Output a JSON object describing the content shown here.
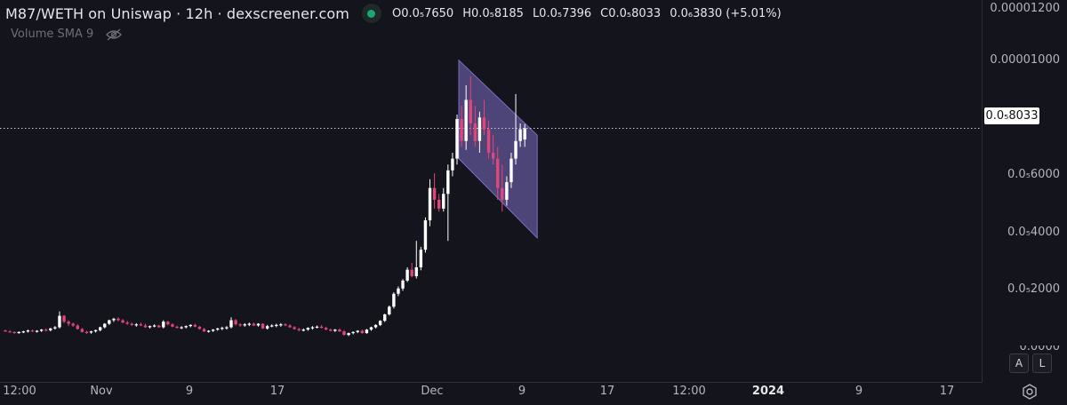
{
  "header": {
    "title": "M87/WETH on Uniswap · 12h · dexscreener.com",
    "open": "O0.0₅7650",
    "high": "H0.0₅8185",
    "low": "L0.0₅7396",
    "close": "C0.0₅8033",
    "change": "0.0₆3830 (+5.01%)",
    "indicator": "Volume SMA 9"
  },
  "axis": {
    "y_labels": [
      "0.00001200",
      "0.00001000",
      "0.0₅8033",
      "0.0₅6000",
      "0.0₅4000",
      "0.0₅2000",
      "0.0000"
    ],
    "current_price": "0.0₅8033",
    "x_labels": [
      "12:00",
      "Nov",
      "9",
      "17",
      "Dec",
      "9",
      "17",
      "12:00",
      "2024",
      "9",
      "17"
    ]
  },
  "buttons": {
    "auto": "A",
    "log": "L"
  },
  "colors": {
    "background": "#14141c",
    "up": "#ffffff",
    "down": "#e0467a",
    "channel": "#7b6bc4"
  },
  "chart_data": {
    "type": "candlestick",
    "pair": "M87/WETH",
    "interval": "12h",
    "y_unit": "WETH",
    "ylim": [
      -6e-07,
      1.24e-05
    ],
    "current_price": 8.033e-06,
    "channel": {
      "upper": [
        [
          1.035e-05,
          7.8e-06
        ]
      ],
      "lower": [
        [
          7e-06,
          4.3e-06
        ]
      ]
    },
    "candles": [
      [
        1.15e-06,
        1.18e-06,
        1.1e-06,
        1.12e-06
      ],
      [
        1.12e-06,
        1.16e-06,
        1.08e-06,
        1.1e-06
      ],
      [
        1.1e-06,
        1.12e-06,
        1.04e-06,
        1.06e-06
      ],
      [
        1.06e-06,
        1.12e-06,
        1.04e-06,
        1.1e-06
      ],
      [
        1.1e-06,
        1.14e-06,
        1.06e-06,
        1.12e-06
      ],
      [
        1.12e-06,
        1.18e-06,
        1.08e-06,
        1.15e-06
      ],
      [
        1.15e-06,
        1.18e-06,
        1.1e-06,
        1.12e-06
      ],
      [
        1.12e-06,
        1.16e-06,
        1.08e-06,
        1.14e-06
      ],
      [
        1.14e-06,
        1.2e-06,
        1.1e-06,
        1.18e-06
      ],
      [
        1.18e-06,
        1.22e-06,
        1.12e-06,
        1.16e-06
      ],
      [
        1.16e-06,
        1.24e-06,
        1.12e-06,
        1.22e-06
      ],
      [
        1.22e-06,
        1.3e-06,
        1.18e-06,
        1.26e-06
      ],
      [
        1.26e-06,
        1.8e-06,
        1.22e-06,
        1.65e-06
      ],
      [
        1.65e-06,
        1.68e-06,
        1.4e-06,
        1.45e-06
      ],
      [
        1.45e-06,
        1.5e-06,
        1.3e-06,
        1.38e-06
      ],
      [
        1.38e-06,
        1.42e-06,
        1.28e-06,
        1.32e-06
      ],
      [
        1.32e-06,
        1.36e-06,
        1.18e-06,
        1.2e-06
      ],
      [
        1.2e-06,
        1.24e-06,
        1.08e-06,
        1.1e-06
      ],
      [
        1.1e-06,
        1.14e-06,
        1.04e-06,
        1.08e-06
      ],
      [
        1.08e-06,
        1.14e-06,
        1.04e-06,
        1.12e-06
      ],
      [
        1.12e-06,
        1.18e-06,
        1.08e-06,
        1.16e-06
      ],
      [
        1.16e-06,
        1.28e-06,
        1.12e-06,
        1.26e-06
      ],
      [
        1.26e-06,
        1.4e-06,
        1.22e-06,
        1.38e-06
      ],
      [
        1.38e-06,
        1.52e-06,
        1.34e-06,
        1.5e-06
      ],
      [
        1.5e-06,
        1.58e-06,
        1.44e-06,
        1.55e-06
      ],
      [
        1.55e-06,
        1.6e-06,
        1.46e-06,
        1.5e-06
      ],
      [
        1.5e-06,
        1.54e-06,
        1.4e-06,
        1.42e-06
      ],
      [
        1.42e-06,
        1.48e-06,
        1.34e-06,
        1.38e-06
      ],
      [
        1.38e-06,
        1.42e-06,
        1.3e-06,
        1.34e-06
      ],
      [
        1.34e-06,
        1.4e-06,
        1.28e-06,
        1.36e-06
      ],
      [
        1.36e-06,
        1.42e-06,
        1.3e-06,
        1.32e-06
      ],
      [
        1.32e-06,
        1.38e-06,
        1.24e-06,
        1.26e-06
      ],
      [
        1.26e-06,
        1.32e-06,
        1.22e-06,
        1.3e-06
      ],
      [
        1.3e-06,
        1.36e-06,
        1.26e-06,
        1.32e-06
      ],
      [
        1.32e-06,
        1.34e-06,
        1.24e-06,
        1.26e-06
      ],
      [
        1.26e-06,
        1.5e-06,
        1.22e-06,
        1.45e-06
      ],
      [
        1.45e-06,
        1.48e-06,
        1.32e-06,
        1.36e-06
      ],
      [
        1.36e-06,
        1.4e-06,
        1.26e-06,
        1.28e-06
      ],
      [
        1.28e-06,
        1.32e-06,
        1.22e-06,
        1.24e-06
      ],
      [
        1.24e-06,
        1.3e-06,
        1.2e-06,
        1.26e-06
      ],
      [
        1.26e-06,
        1.32e-06,
        1.22e-06,
        1.3e-06
      ],
      [
        1.3e-06,
        1.36e-06,
        1.26e-06,
        1.34e-06
      ],
      [
        1.34e-06,
        1.38e-06,
        1.26e-06,
        1.28e-06
      ],
      [
        1.28e-06,
        1.3e-06,
        1.18e-06,
        1.2e-06
      ],
      [
        1.2e-06,
        1.24e-06,
        1.1e-06,
        1.12e-06
      ],
      [
        1.12e-06,
        1.16e-06,
        1.08e-06,
        1.14e-06
      ],
      [
        1.14e-06,
        1.2e-06,
        1.1e-06,
        1.18e-06
      ],
      [
        1.18e-06,
        1.24e-06,
        1.14e-06,
        1.22e-06
      ],
      [
        1.22e-06,
        1.28e-06,
        1.16e-06,
        1.24e-06
      ],
      [
        1.24e-06,
        1.3e-06,
        1.18e-06,
        1.26e-06
      ],
      [
        1.26e-06,
        1.6e-06,
        1.22e-06,
        1.5e-06
      ],
      [
        1.5e-06,
        1.54e-06,
        1.32e-06,
        1.36e-06
      ],
      [
        1.36e-06,
        1.4e-06,
        1.28e-06,
        1.32e-06
      ],
      [
        1.32e-06,
        1.4e-06,
        1.28e-06,
        1.36e-06
      ],
      [
        1.36e-06,
        1.42e-06,
        1.3e-06,
        1.38e-06
      ],
      [
        1.38e-06,
        1.42e-06,
        1.3e-06,
        1.32e-06
      ],
      [
        1.32e-06,
        1.4e-06,
        1.28e-06,
        1.38e-06
      ],
      [
        1.38e-06,
        1.4e-06,
        1.2e-06,
        1.22e-06
      ],
      [
        1.22e-06,
        1.34e-06,
        1.18e-06,
        1.3e-06
      ],
      [
        1.3e-06,
        1.36e-06,
        1.26e-06,
        1.32e-06
      ],
      [
        1.32e-06,
        1.38e-06,
        1.26e-06,
        1.34e-06
      ],
      [
        1.34e-06,
        1.4e-06,
        1.28e-06,
        1.36e-06
      ],
      [
        1.36e-06,
        1.4e-06,
        1.3e-06,
        1.32e-06
      ],
      [
        1.32e-06,
        1.36e-06,
        1.24e-06,
        1.26e-06
      ],
      [
        1.26e-06,
        1.3e-06,
        1.18e-06,
        1.2e-06
      ],
      [
        1.2e-06,
        1.24e-06,
        1.12e-06,
        1.16e-06
      ],
      [
        1.16e-06,
        1.22e-06,
        1.12e-06,
        1.18e-06
      ],
      [
        1.18e-06,
        1.26e-06,
        1.14e-06,
        1.24e-06
      ],
      [
        1.24e-06,
        1.3e-06,
        1.18e-06,
        1.26e-06
      ],
      [
        1.26e-06,
        1.32e-06,
        1.22e-06,
        1.28e-06
      ],
      [
        1.28e-06,
        1.34e-06,
        1.22e-06,
        1.24e-06
      ],
      [
        1.24e-06,
        1.28e-06,
        1.16e-06,
        1.18e-06
      ],
      [
        1.18e-06,
        1.22e-06,
        1.12e-06,
        1.14e-06
      ],
      [
        1.14e-06,
        1.2e-06,
        1.1e-06,
        1.18e-06
      ],
      [
        1.18e-06,
        1.22e-06,
        1.1e-06,
        1.12e-06
      ],
      [
        1.12e-06,
        1.16e-06,
        9.8e-07,
        1e-06
      ],
      [
        1e-06,
        1.08e-06,
        9.6e-07,
        1.06e-06
      ],
      [
        1.06e-06,
        1.12e-06,
        1.02e-06,
        1.1e-06
      ],
      [
        1.1e-06,
        1.16e-06,
        1.06e-06,
        1.14e-06
      ],
      [
        1.14e-06,
        1.18e-06,
        1.04e-06,
        1.06e-06
      ],
      [
        1.06e-06,
        1.2e-06,
        1.04e-06,
        1.18e-06
      ],
      [
        1.18e-06,
        1.28e-06,
        1.14e-06,
        1.26e-06
      ],
      [
        1.26e-06,
        1.36e-06,
        1.22e-06,
        1.34e-06
      ],
      [
        1.34e-06,
        1.5e-06,
        1.3e-06,
        1.48e-06
      ],
      [
        1.48e-06,
        1.72e-06,
        1.44e-06,
        1.7e-06
      ],
      [
        1.7e-06,
        2e-06,
        1.66e-06,
        1.96e-06
      ],
      [
        1.96e-06,
        2.45e-06,
        1.9e-06,
        2.4e-06
      ],
      [
        2.4e-06,
        2.65e-06,
        2.32e-06,
        2.58e-06
      ],
      [
        2.58e-06,
        2.9e-06,
        2.5e-06,
        2.85e-06
      ],
      [
        2.85e-06,
        3.3e-06,
        2.8e-06,
        3.22e-06
      ],
      [
        3.22e-06,
        3.45e-06,
        2.96e-06,
        3e-06
      ],
      [
        3e-06,
        4.2e-06,
        2.92e-06,
        3.3e-06
      ],
      [
        3.3e-06,
        4e-06,
        3.2e-06,
        3.9e-06
      ],
      [
        3.9e-06,
        5e-06,
        3.8e-06,
        4.9e-06
      ],
      [
        4.9e-06,
        6.3e-06,
        4.7e-06,
        6e-06
      ],
      [
        6e-06,
        6.5e-06,
        5.3e-06,
        5.6e-06
      ],
      [
        5.6e-06,
        5.8e-06,
        5.2e-06,
        5.3e-06
      ],
      [
        5.3e-06,
        6e-06,
        5.2e-06,
        5.8e-06
      ],
      [
        5.8e-06,
        6.8e-06,
        4.2e-06,
        6.6e-06
      ],
      [
        6.6e-06,
        7.2e-06,
        6.4e-06,
        7e-06
      ],
      [
        7e-06,
        8.5e-06,
        6.8e-06,
        8.35e-06
      ],
      [
        8.35e-06,
        8.8e-06,
        7.4e-06,
        7.6e-06
      ],
      [
        7.6e-06,
        9.5e-06,
        7.3e-06,
        9e-06
      ],
      [
        9e-06,
        9.8e-06,
        7.8e-06,
        8.2e-06
      ],
      [
        8.2e-06,
        8.8e-06,
        7.4e-06,
        7.6e-06
      ],
      [
        7.6e-06,
        8.6e-06,
        7.2e-06,
        8.4e-06
      ],
      [
        8.4e-06,
        9e-06,
        7.8e-06,
        8e-06
      ],
      [
        8e-06,
        8.3e-06,
        7e-06,
        7.2e-06
      ],
      [
        7.2e-06,
        7.8e-06,
        6.8e-06,
        7e-06
      ],
      [
        7e-06,
        7.4e-06,
        5.6e-06,
        6e-06
      ],
      [
        6e-06,
        6.8e-06,
        5.2e-06,
        5.6e-06
      ],
      [
        5.6e-06,
        6.4e-06,
        5.4e-06,
        6.2e-06
      ],
      [
        6.2e-06,
        7.2e-06,
        6e-06,
        7e-06
      ],
      [
        7e-06,
        9.2e-06,
        6.8e-06,
        7.6e-06
      ],
      [
        7.6e-06,
        8.2e-06,
        7.4e-06,
        8e-06
      ],
      [
        7.65e-06,
        8.18e-06,
        7.4e-06,
        8.03e-06
      ]
    ]
  }
}
